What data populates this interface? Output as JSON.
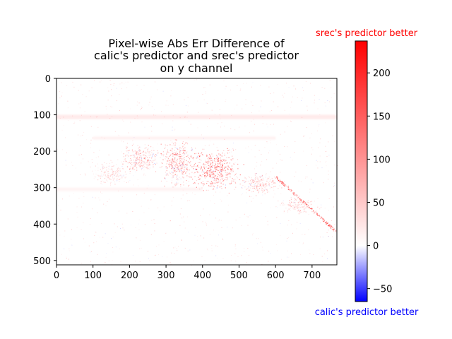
{
  "chart_data": {
    "type": "heatmap",
    "title_lines": [
      "Pixel-wise Abs Err Difference of",
      "calic's predictor and srec's predictor",
      "on y channel"
    ],
    "xlabel": "",
    "ylabel": "",
    "xlim": [
      0,
      768
    ],
    "ylim": [
      512,
      0
    ],
    "xticks": [
      0,
      100,
      200,
      300,
      400,
      500,
      600,
      700
    ],
    "yticks": [
      0,
      100,
      200,
      300,
      400,
      500
    ],
    "colorbar": {
      "vmin": -65,
      "vmax": 237,
      "ticks": [
        -50,
        0,
        50,
        100,
        150,
        200
      ],
      "cmap": "bwr",
      "top_label": "srec's predictor better",
      "top_label_color": "#ff0000",
      "bottom_label": "calic's predictor better",
      "bottom_label_color": "#0000ff"
    }
  }
}
